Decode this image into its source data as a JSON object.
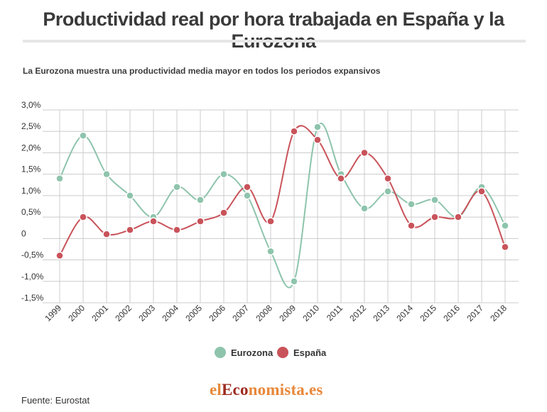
{
  "header": {
    "title": "Productividad real por hora trabajada en España y la Eurozona",
    "subtitle": "La Eurozona muestra una productividad media mayor en todos los periodos expansivos"
  },
  "footer": {
    "source": "Fuente: Eurostat",
    "brand_el": "el",
    "brand_eco": "Eco",
    "brand_nomista": "nomista.es"
  },
  "colors": {
    "eurozona": "#8ec4ac",
    "espana": "#c9535a",
    "grid": "#cccccc"
  },
  "chart_data": {
    "type": "line",
    "smooth": true,
    "x": [
      "1999",
      "2000",
      "2001",
      "2002",
      "2003",
      "2004",
      "2005",
      "2006",
      "2007",
      "2008",
      "2009",
      "2010",
      "2011",
      "2012",
      "2013",
      "2014",
      "2015",
      "2016",
      "2017",
      "2018"
    ],
    "ylim": [
      -1.5,
      3.0
    ],
    "yticks": [
      3.0,
      2.5,
      2.0,
      1.5,
      1.0,
      0.5,
      0,
      -0.5,
      -1.0,
      -1.5
    ],
    "ytick_labels": [
      "3,0%",
      "2,5%",
      "2,0%",
      "1,5%",
      "1,0%",
      "0,5%",
      "0",
      "-0,5%",
      "-1,0%",
      "-1,5%"
    ],
    "grid": true,
    "legend_position": "bottom",
    "series": [
      {
        "name": "Eurozona",
        "color": "#8ec4ac",
        "values": [
          1.4,
          2.4,
          1.5,
          1.0,
          0.5,
          1.2,
          0.9,
          1.5,
          1.0,
          -0.3,
          -1.0,
          2.6,
          1.5,
          0.7,
          1.1,
          0.8,
          0.9,
          0.5,
          1.2,
          0.3
        ]
      },
      {
        "name": "España",
        "color": "#c9535a",
        "values": [
          -0.4,
          0.5,
          0.1,
          0.2,
          0.4,
          0.2,
          0.4,
          0.6,
          1.2,
          0.4,
          2.5,
          2.3,
          1.4,
          2.0,
          1.4,
          0.3,
          0.5,
          0.5,
          1.1,
          -0.2
        ]
      }
    ]
  }
}
